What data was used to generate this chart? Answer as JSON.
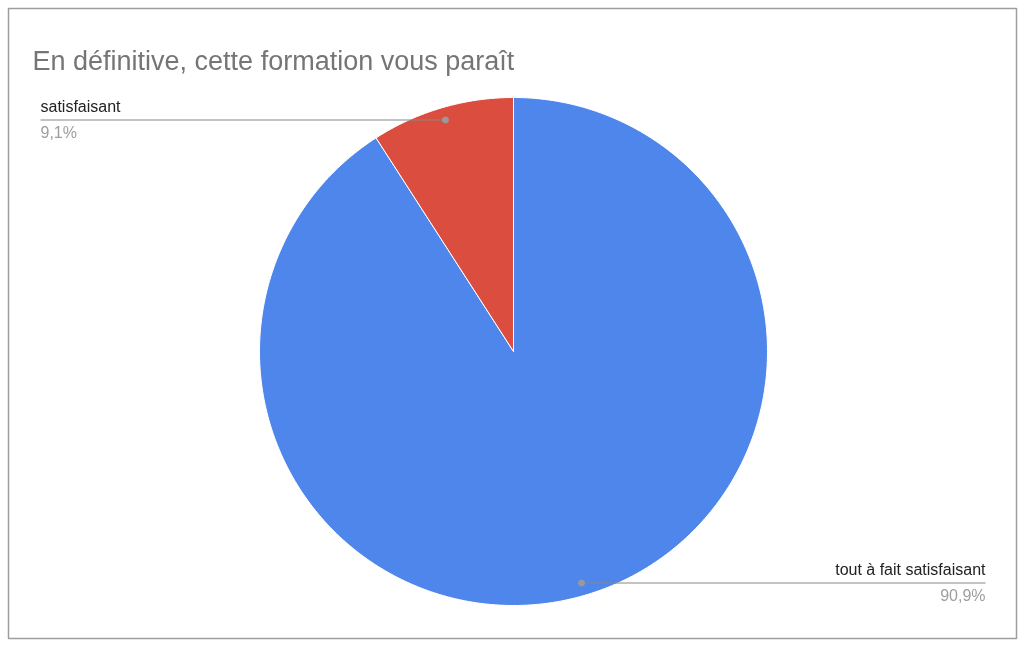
{
  "chart_data": {
    "type": "pie",
    "title": "En définitive, cette formation vous paraît",
    "categories": [
      "tout à fait satisfaisant",
      "satisfaisant"
    ],
    "values": [
      90.9,
      9.1
    ],
    "colors": [
      "#4f86ec",
      "#db4d3f"
    ],
    "value_labels": [
      "90,9%",
      "9,1%"
    ]
  }
}
